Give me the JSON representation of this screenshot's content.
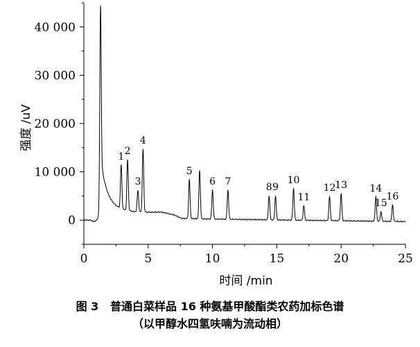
{
  "caption": {
    "line1": "图 3   普通白菜样品 16 种氨基甲酸酯类农药加标色谱",
    "line2": "（以甲醇水四氢呋喃为流动相）"
  },
  "chart_data": {
    "type": "line",
    "title": "",
    "xlabel": "时间 /min",
    "ylabel": "强度 /uV",
    "xlim": [
      0,
      25
    ],
    "ylim": [
      -5000,
      45000
    ],
    "x_ticks": [
      0,
      5,
      10,
      15,
      20,
      25
    ],
    "x_tick_labels": [
      "0",
      "5",
      "10",
      "15",
      "20",
      "25"
    ],
    "y_ticks": [
      0,
      10000,
      20000,
      30000,
      40000
    ],
    "y_tick_labels": [
      "0",
      "10 000",
      "20 000",
      "30 000",
      "40 000"
    ],
    "grid": false,
    "baseline": {
      "x": [
        0,
        0.5,
        0.8,
        1.0,
        1.1,
        6.0,
        7.0,
        7.6,
        25
      ],
      "y": [
        0,
        0,
        -300,
        0,
        500,
        1500,
        1000,
        300,
        -300
      ]
    },
    "solvent_peak": {
      "t": 1.3,
      "height": 44000,
      "rise": 0.06,
      "tail_amp": 9000,
      "tail_tau": 0.45,
      "tail2_amp": 3500,
      "tail2_tau": 1.6
    },
    "peaks": [
      {
        "label": "1",
        "t": 2.9,
        "height": 9000
      },
      {
        "label": "2",
        "t": 3.4,
        "height": 10500
      },
      {
        "label": "3",
        "t": 4.2,
        "height": 4500
      },
      {
        "label": "4",
        "t": 4.6,
        "height": 13000
      },
      {
        "label": "5",
        "t": 8.2,
        "height": 8000
      },
      {
        "label": "",
        "t": 9.0,
        "height": 10000
      },
      {
        "label": "6",
        "t": 10.0,
        "height": 6000
      },
      {
        "label": "7",
        "t": 11.2,
        "height": 6000
      },
      {
        "label": "8",
        "t": 14.4,
        "height": 5000
      },
      {
        "label": "9",
        "t": 14.9,
        "height": 5000
      },
      {
        "label": "10",
        "t": 16.3,
        "height": 6500
      },
      {
        "label": "11",
        "t": 17.1,
        "height": 3000
      },
      {
        "label": "12",
        "t": 19.1,
        "height": 5000
      },
      {
        "label": "13",
        "t": 20.0,
        "height": 5600
      },
      {
        "label": "14",
        "t": 22.7,
        "height": 5000
      },
      {
        "label": "15",
        "t": 23.1,
        "height": 2000
      },
      {
        "label": "16",
        "t": 24.0,
        "height": 3400
      }
    ]
  }
}
